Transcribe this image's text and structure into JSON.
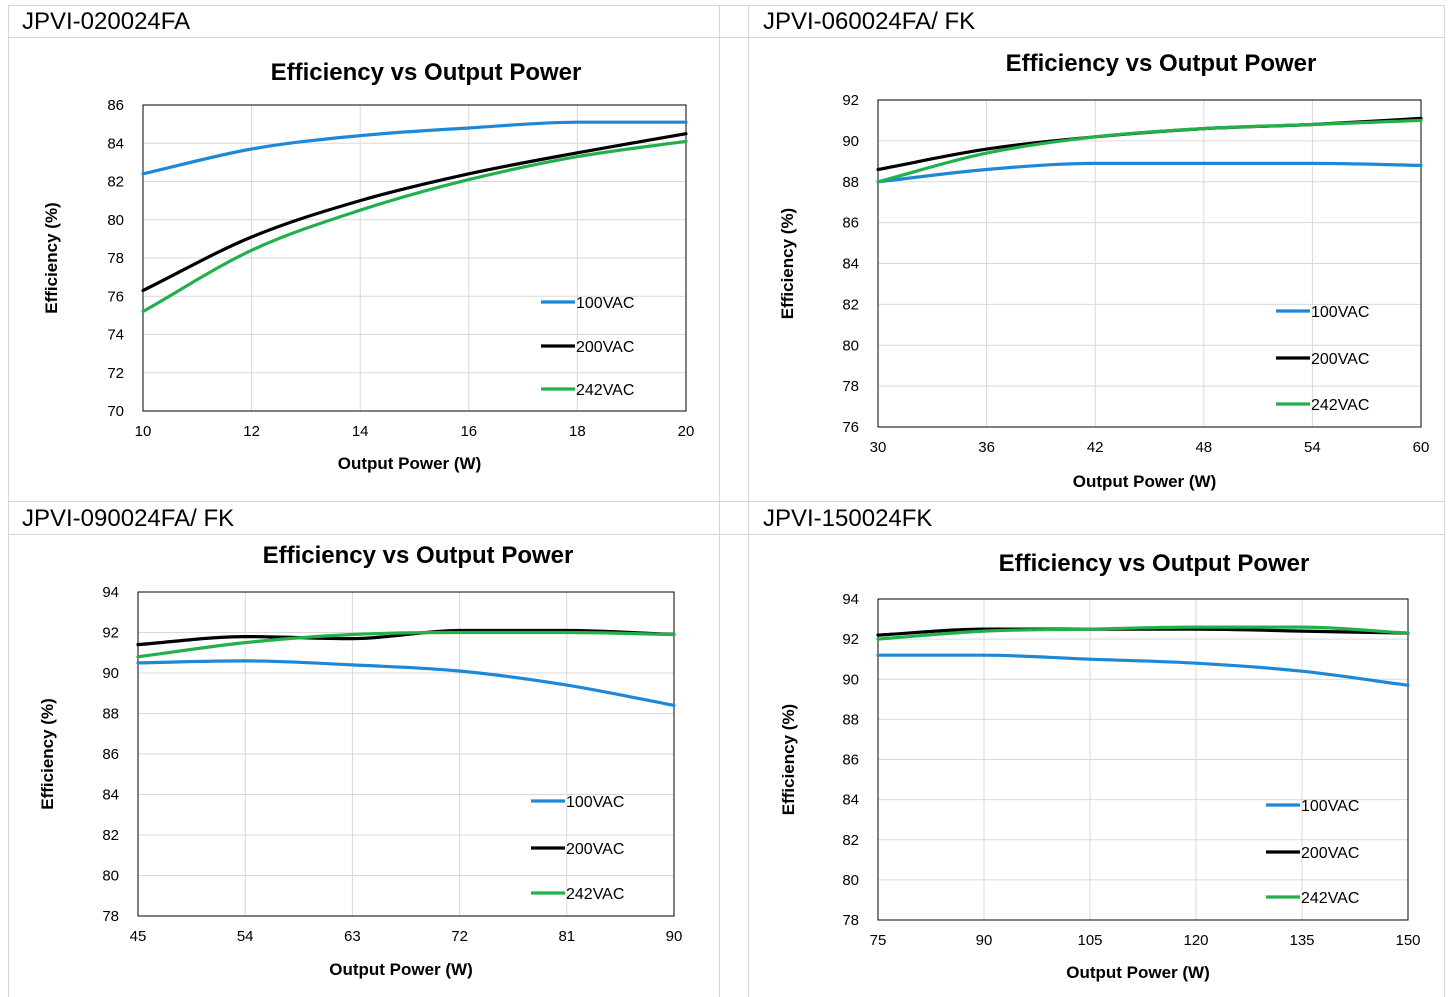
{
  "panels": [
    {
      "label": "JPVI-020024FA",
      "chart_data": {
        "type": "line",
        "title": "Efficiency vs Output Power",
        "xlabel": "Output Power (W)",
        "ylabel": "Efficiency (%)",
        "xlim": [
          10,
          20
        ],
        "ylim": [
          70,
          86
        ],
        "xticks": [
          "10",
          "12",
          "14",
          "16",
          "18",
          "20"
        ],
        "yticks": [
          "70",
          "72",
          "74",
          "76",
          "78",
          "80",
          "82",
          "84",
          "86"
        ],
        "grid": true,
        "legend": "right",
        "x": [
          10,
          12,
          14,
          16,
          18,
          20
        ],
        "series": [
          {
            "name": "100VAC",
            "color": "#1e88d6",
            "values": [
              82.4,
              83.7,
              84.4,
              84.8,
              85.1,
              85.1
            ]
          },
          {
            "name": "200VAC",
            "color": "#000000",
            "values": [
              76.3,
              79.1,
              81.0,
              82.4,
              83.5,
              84.5
            ]
          },
          {
            "name": "242VAC",
            "color": "#22b04b",
            "values": [
              75.2,
              78.4,
              80.5,
              82.1,
              83.3,
              84.1
            ]
          }
        ]
      }
    },
    {
      "label": "JPVI-060024FA/ FK",
      "chart_data": {
        "type": "line",
        "title": "Efficiency vs Output Power",
        "xlabel": "Output Power (W)",
        "ylabel": "Efficiency (%)",
        "xlim": [
          30,
          60
        ],
        "ylim": [
          76,
          92
        ],
        "xticks": [
          "30",
          "36",
          "42",
          "48",
          "54",
          "60"
        ],
        "yticks": [
          "76",
          "78",
          "80",
          "82",
          "84",
          "86",
          "88",
          "90",
          "92"
        ],
        "grid": true,
        "legend": "right",
        "x": [
          30,
          36,
          42,
          48,
          54,
          60
        ],
        "series": [
          {
            "name": "100VAC",
            "color": "#1e88d6",
            "values": [
              88.0,
              88.6,
              88.9,
              88.9,
              88.9,
              88.8
            ]
          },
          {
            "name": "200VAC",
            "color": "#000000",
            "values": [
              88.6,
              89.6,
              90.2,
              90.6,
              90.8,
              91.1
            ]
          },
          {
            "name": "242VAC",
            "color": "#22b04b",
            "values": [
              88.0,
              89.4,
              90.2,
              90.6,
              90.8,
              91.0
            ]
          }
        ]
      }
    },
    {
      "label": "JPVI-090024FA/ FK",
      "chart_data": {
        "type": "line",
        "title": "Efficiency vs Output Power",
        "xlabel": "Output Power (W)",
        "ylabel": "Efficiency (%)",
        "xlim": [
          45,
          90
        ],
        "ylim": [
          78,
          94
        ],
        "xticks": [
          "45",
          "54",
          "63",
          "72",
          "81",
          "90"
        ],
        "yticks": [
          "78",
          "80",
          "82",
          "84",
          "86",
          "88",
          "90",
          "92",
          "94"
        ],
        "grid": true,
        "legend": "right",
        "x": [
          45,
          54,
          63,
          72,
          81,
          90
        ],
        "series": [
          {
            "name": "100VAC",
            "color": "#1e88d6",
            "values": [
              90.5,
              90.6,
              90.4,
              90.1,
              89.4,
              88.4
            ]
          },
          {
            "name": "200VAC",
            "color": "#000000",
            "values": [
              91.4,
              91.8,
              91.7,
              92.1,
              92.1,
              91.9
            ]
          },
          {
            "name": "242VAC",
            "color": "#22b04b",
            "values": [
              90.8,
              91.5,
              91.9,
              92.0,
              92.0,
              91.9
            ]
          }
        ]
      }
    },
    {
      "label": "JPVI-150024FK",
      "chart_data": {
        "type": "line",
        "title": "Efficiency vs Output Power",
        "xlabel": "Output Power (W)",
        "ylabel": "Efficiency (%)",
        "xlim": [
          75,
          150
        ],
        "ylim": [
          78,
          94
        ],
        "xticks": [
          "75",
          "90",
          "105",
          "120",
          "135",
          "150"
        ],
        "yticks": [
          "78",
          "80",
          "82",
          "84",
          "86",
          "88",
          "90",
          "92",
          "94"
        ],
        "grid": true,
        "legend": "right",
        "x": [
          75,
          90,
          105,
          120,
          135,
          150
        ],
        "series": [
          {
            "name": "100VAC",
            "color": "#1e88d6",
            "values": [
              91.2,
              91.2,
              91.0,
              90.8,
              90.4,
              89.7
            ]
          },
          {
            "name": "200VAC",
            "color": "#000000",
            "values": [
              92.2,
              92.5,
              92.5,
              92.5,
              92.4,
              92.3
            ]
          },
          {
            "name": "242VAC",
            "color": "#22b04b",
            "values": [
              92.0,
              92.4,
              92.5,
              92.6,
              92.6,
              92.3
            ]
          }
        ]
      }
    }
  ]
}
